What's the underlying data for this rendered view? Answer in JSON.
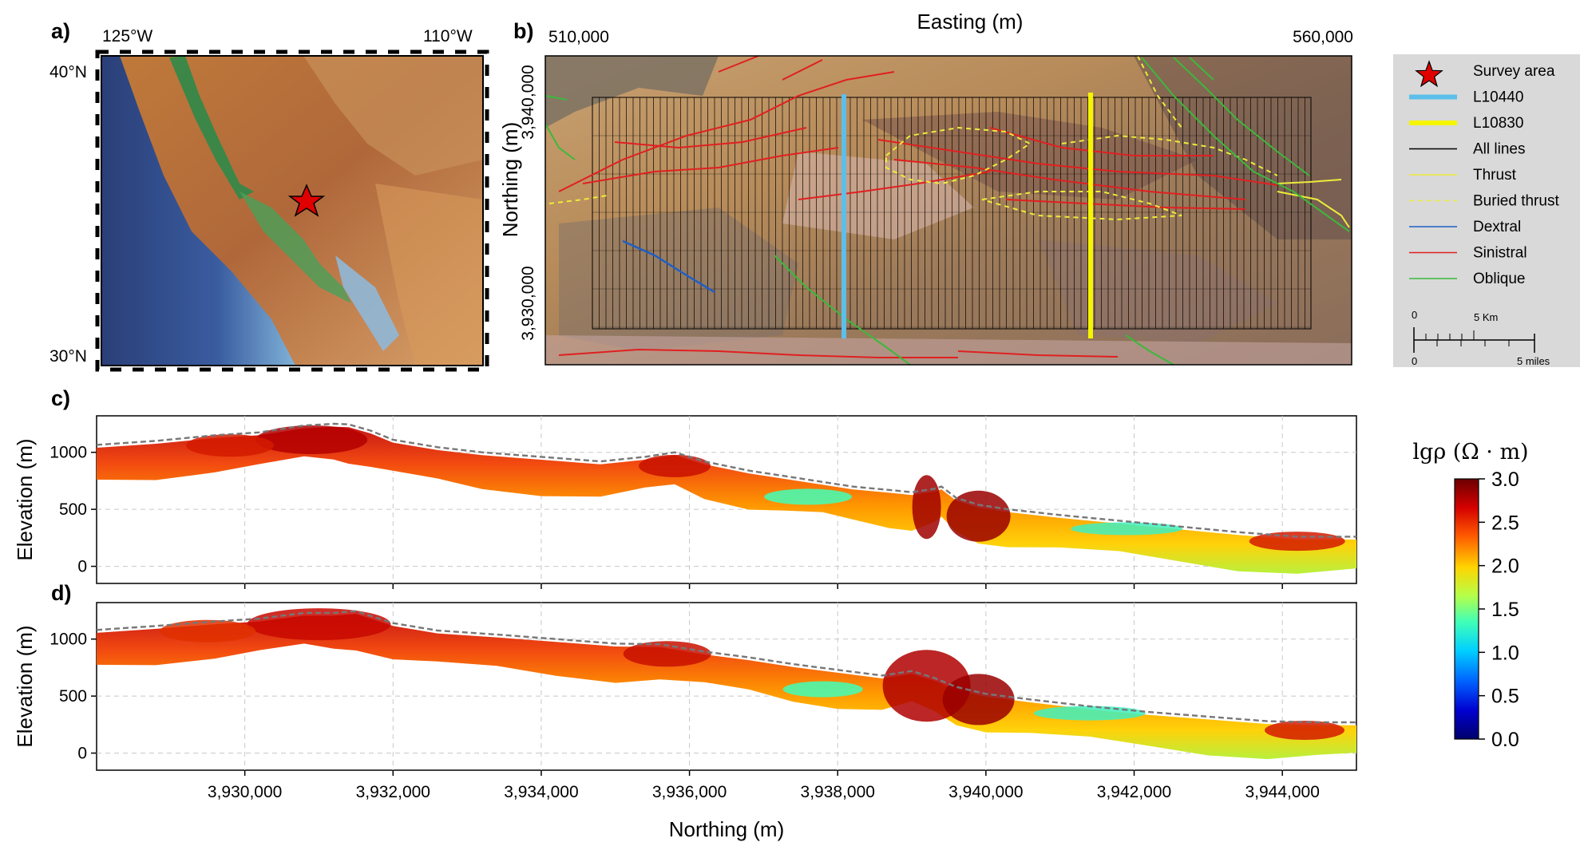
{
  "panels": {
    "a": {
      "label": "a)",
      "lon_left": "125°W",
      "lon_right": "110°W",
      "lat_top": "40°N",
      "lat_bottom": "30°N",
      "marker_icon": "red-star-icon"
    },
    "b": {
      "label": "b)",
      "title": "Easting (m)",
      "easting_left": "510,000",
      "easting_right": "560,000",
      "ylabel": "Northing (m)",
      "northing_top": "3,940,000",
      "northing_bottom": "3,930,000",
      "legend": [
        {
          "label": "Survey area",
          "kind": "star",
          "color": "#e00000"
        },
        {
          "label": "L10440",
          "kind": "thick-line",
          "color": "#5bbfea"
        },
        {
          "label": "L10830",
          "kind": "thick-line",
          "color": "#f5f500"
        },
        {
          "label": "All lines",
          "kind": "line",
          "color": "#000000"
        },
        {
          "label": "Thrust",
          "kind": "line",
          "color": "#ecec3a"
        },
        {
          "label": "Buried thrust",
          "kind": "dashed-line",
          "color": "#ecec3a"
        },
        {
          "label": "Dextral",
          "kind": "line",
          "color": "#1f5fc4"
        },
        {
          "label": "Sinistral",
          "kind": "line",
          "color": "#e02020"
        },
        {
          "label": "Oblique",
          "kind": "line",
          "color": "#3cb83c"
        }
      ],
      "scalebar": {
        "top_left": "0",
        "top_right": "5 Km",
        "bottom_left": "0",
        "bottom_right": "5 miles"
      }
    },
    "c": {
      "label": "c)"
    },
    "d": {
      "label": "d)"
    }
  },
  "colorbar": {
    "title": "lgρ (Ω · m)",
    "ticks": [
      "3.0",
      "2.5",
      "2.0",
      "1.5",
      "1.0",
      "0.5",
      "0.0"
    ],
    "colors": [
      "#6b0000",
      "#d40000",
      "#ff6a00",
      "#ffd400",
      "#c8ff3c",
      "#40ffb8",
      "#00d8ff",
      "#0060ff",
      "#0000c8",
      "#00006b"
    ]
  },
  "chart_data": [
    {
      "type": "heatmap",
      "panel": "c",
      "title": "",
      "ylabel": "Elevation (m)",
      "xlabel": "",
      "xlim": [
        3928000,
        3945000
      ],
      "ylim": [
        -150,
        1320
      ],
      "yticks": [
        "1000",
        "500",
        "0"
      ],
      "ytick_values": [
        1000,
        500,
        0
      ],
      "xtick_values": [
        3930000,
        3932000,
        3934000,
        3936000,
        3938000,
        3940000,
        3942000,
        3944000
      ],
      "grid": true,
      "surface_x": [
        3928000,
        3928800,
        3929600,
        3930200,
        3930800,
        3931200,
        3931400,
        3931700,
        3932000,
        3932600,
        3933200,
        3934000,
        3934800,
        3935400,
        3935800,
        3936200,
        3936800,
        3937300,
        3937800,
        3938200,
        3938700,
        3939000,
        3939300,
        3939400,
        3939600,
        3939900,
        3940300,
        3941000,
        3941800,
        3942600,
        3943400,
        3944200,
        3945000
      ],
      "surface_elev": [
        1065,
        1100,
        1150,
        1175,
        1235,
        1250,
        1245,
        1190,
        1110,
        1045,
        1000,
        960,
        920,
        960,
        1000,
        920,
        840,
        790,
        740,
        700,
        670,
        650,
        680,
        700,
        600,
        540,
        500,
        450,
        400,
        350,
        300,
        260,
        260
      ],
      "surface_label": "topographic surface (dashed)"
    },
    {
      "type": "heatmap",
      "panel": "d",
      "title": "",
      "ylabel": "Elevation (m)",
      "xlabel": "Northing (m)",
      "xlim": [
        3928000,
        3945000
      ],
      "ylim": [
        -150,
        1320
      ],
      "yticks": [
        "1000",
        "500",
        "0"
      ],
      "ytick_values": [
        1000,
        500,
        0
      ],
      "xticks": [
        "3,930,000",
        "3,932,000",
        "3,934,000",
        "3,936,000",
        "3,938,000",
        "3,940,000",
        "3,942,000",
        "3,944,000"
      ],
      "xtick_values": [
        3930000,
        3932000,
        3934000,
        3936000,
        3938000,
        3940000,
        3942000,
        3944000
      ],
      "grid": true,
      "surface_x": [
        3928000,
        3928800,
        3929600,
        3930200,
        3930800,
        3931200,
        3931500,
        3932000,
        3932600,
        3933400,
        3934200,
        3935000,
        3935600,
        3936200,
        3936800,
        3937400,
        3938000,
        3938600,
        3939000,
        3939300,
        3939600,
        3940000,
        3940600,
        3941400,
        3942200,
        3943000,
        3943800,
        3944500,
        3945000
      ],
      "surface_elev": [
        1080,
        1115,
        1155,
        1180,
        1230,
        1230,
        1245,
        1140,
        1075,
        1040,
        1000,
        960,
        955,
        890,
        840,
        780,
        730,
        680,
        720,
        660,
        580,
        520,
        470,
        410,
        360,
        320,
        280,
        270,
        270
      ]
    }
  ]
}
